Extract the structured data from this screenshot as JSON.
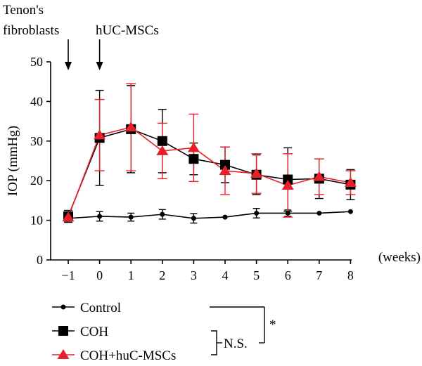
{
  "chart_data": {
    "type": "line",
    "title": "",
    "ylabel": "IOP (mmHg)",
    "xunit_label": "(weeks)",
    "x": [
      -1,
      0,
      1,
      2,
      3,
      4,
      5,
      6,
      7,
      8
    ],
    "x_tick_labels": [
      "−1",
      "0",
      "1",
      "2",
      "3",
      "4",
      "5",
      "6",
      "7",
      "8"
    ],
    "ylim": [
      0,
      50
    ],
    "y_ticks": [
      0,
      10,
      20,
      30,
      40,
      50
    ],
    "grid": false,
    "legend_position": "bottom-left",
    "series": [
      {
        "name": "Control",
        "marker": "circle",
        "color": "#000000",
        "values": [
          10.5,
          11.0,
          10.8,
          11.5,
          10.5,
          10.8,
          11.8,
          11.8,
          11.8,
          12.2
        ],
        "errors": [
          1.0,
          1.2,
          1.0,
          1.2,
          1.2,
          0,
          1.2,
          0.8,
          0,
          0
        ]
      },
      {
        "name": "COH",
        "marker": "square",
        "color": "#000000",
        "values": [
          11.0,
          30.8,
          33.0,
          30.0,
          25.5,
          24.0,
          21.5,
          20.3,
          20.5,
          19.0
        ],
        "errors": [
          1.5,
          12.0,
          11.0,
          8.0,
          4.0,
          4.5,
          5.0,
          8.0,
          5.0,
          3.8
        ]
      },
      {
        "name": "COH+huC-MSCs",
        "marker": "triangle",
        "color": "#e8202a",
        "values": [
          10.8,
          31.5,
          33.5,
          27.5,
          28.3,
          22.5,
          21.8,
          18.8,
          21.0,
          19.5
        ],
        "errors": [
          1.0,
          9.0,
          11.0,
          7.0,
          8.5,
          6.0,
          5.0,
          8.0,
          4.5,
          3.0
        ]
      }
    ],
    "annotations": [
      {
        "text": "Tenon's",
        "line": 1
      },
      {
        "text": "fibroblasts",
        "line": 2
      },
      {
        "text": "hUC-MSCs",
        "line": 2
      }
    ],
    "significance": [
      {
        "text": "*",
        "between": [
          "Control",
          "COH"
        ]
      },
      {
        "text": "N.S.",
        "between": [
          "COH",
          "COH+huC-MSCs"
        ]
      }
    ]
  }
}
